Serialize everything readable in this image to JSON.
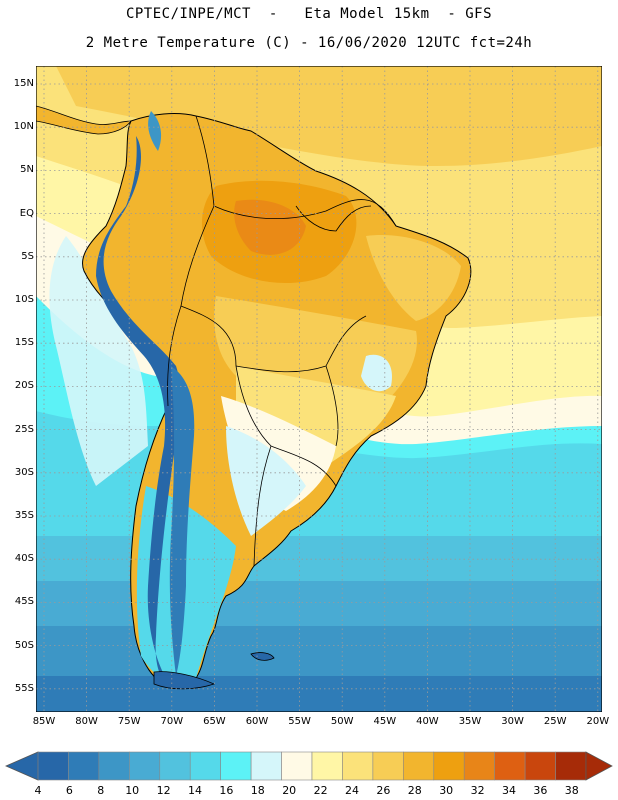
{
  "header": {
    "line1": "CPTEC/INPE/MCT  -   Eta Model 15km  - GFS",
    "line2": "2 Metre Temperature (C) - 16/06/2020 12UTC fct=24h"
  },
  "map": {
    "lat_labels": [
      "15N",
      "10N",
      "5N",
      "EQ",
      "5S",
      "10S",
      "15S",
      "20S",
      "25S",
      "30S",
      "35S",
      "40S",
      "45S",
      "50S",
      "55S"
    ],
    "lon_labels": [
      "85W",
      "80W",
      "75W",
      "70W",
      "65W",
      "60W",
      "55W",
      "50W",
      "45W",
      "40W",
      "35W",
      "30W",
      "25W",
      "20W"
    ]
  },
  "legend": {
    "values": [
      "4",
      "6",
      "8",
      "10",
      "12",
      "14",
      "16",
      "18",
      "20",
      "22",
      "24",
      "26",
      "28",
      "30",
      "32",
      "34",
      "36",
      "38"
    ],
    "colors": [
      "#2767a8",
      "#2f7cb7",
      "#3d96c6",
      "#49abd3",
      "#52c2de",
      "#55d9ea",
      "#5cf2f6",
      "#d5f6fa",
      "#fffae6",
      "#fff6a6",
      "#fbe27a",
      "#f7cd55",
      "#f2b52e",
      "#eea010",
      "#e88518",
      "#de6012",
      "#c9460d",
      "#a62b08"
    ]
  },
  "colors": {
    "ocean_warm": "#fbe27a",
    "ocean_cool": "#55d9ea",
    "land": "#f2b52e",
    "andes": "#2767a8",
    "border": "#000000",
    "grid": "#9a9a9a"
  }
}
